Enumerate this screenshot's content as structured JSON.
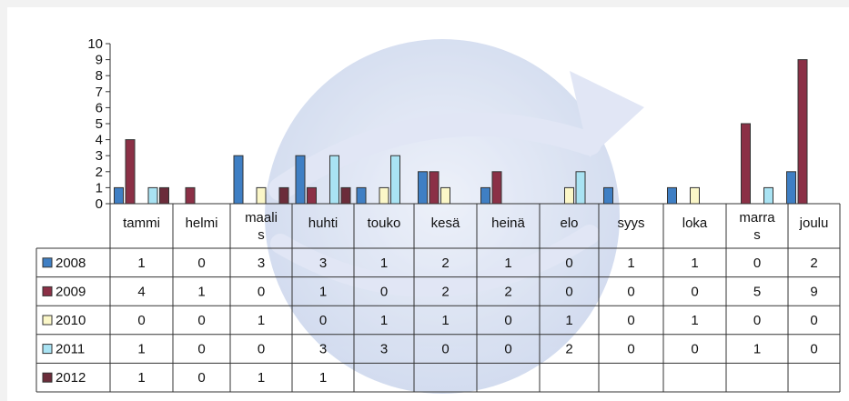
{
  "chart_data": {
    "type": "bar",
    "categories": [
      "tammi",
      "helmi",
      "maalis",
      "huhti",
      "touko",
      "kesä",
      "heinä",
      "elo",
      "syys",
      "loka",
      "marras",
      "joulu"
    ],
    "category_labels": [
      [
        "tammi"
      ],
      [
        "helmi"
      ],
      [
        "maali",
        "s"
      ],
      [
        "huhti"
      ],
      [
        "touko"
      ],
      [
        "kesä"
      ],
      [
        "heinä"
      ],
      [
        "elo"
      ],
      [
        "syys"
      ],
      [
        "loka"
      ],
      [
        "marra",
        "s"
      ],
      [
        "joulu"
      ]
    ],
    "ylim": [
      0,
      10
    ],
    "yticks": [
      "0",
      "1",
      "2",
      "3",
      "4",
      "5",
      "6",
      "7",
      "8",
      "9",
      "10"
    ],
    "series": [
      {
        "name": "2008",
        "color": "#3f7fc4",
        "values": [
          1,
          0,
          3,
          3,
          1,
          2,
          1,
          0,
          1,
          1,
          0,
          2
        ],
        "labels": [
          "1",
          "0",
          "3",
          "3",
          "1",
          "2",
          "1",
          "0",
          "1",
          "1",
          "0",
          "2"
        ]
      },
      {
        "name": "2009",
        "color": "#8b3046",
        "values": [
          4,
          1,
          0,
          1,
          0,
          2,
          2,
          0,
          0,
          0,
          5,
          9
        ],
        "labels": [
          "4",
          "1",
          "0",
          "1",
          "0",
          "2",
          "2",
          "0",
          "0",
          "0",
          "5",
          "9"
        ]
      },
      {
        "name": "2010",
        "color": "#fbf7c8",
        "values": [
          0,
          0,
          1,
          0,
          1,
          1,
          0,
          1,
          0,
          1,
          0,
          0
        ],
        "labels": [
          "0",
          "0",
          "1",
          "0",
          "1",
          "1",
          "0",
          "1",
          "0",
          "1",
          "0",
          "0"
        ]
      },
      {
        "name": "2011",
        "color": "#a9e3f3",
        "values": [
          1,
          0,
          0,
          3,
          3,
          0,
          0,
          2,
          0,
          0,
          1,
          0
        ],
        "labels": [
          "1",
          "0",
          "0",
          "3",
          "3",
          "0",
          "0",
          "2",
          "0",
          "0",
          "1",
          "0"
        ]
      },
      {
        "name": "2012",
        "color": "#6b2c3a",
        "values": [
          1,
          0,
          1,
          1,
          null,
          null,
          null,
          null,
          null,
          null,
          null,
          null
        ],
        "labels": [
          "1",
          "0",
          "1",
          "1",
          "",
          "",
          "",
          "",
          "",
          "",
          "",
          ""
        ]
      }
    ],
    "grid": false,
    "legend": "table"
  }
}
